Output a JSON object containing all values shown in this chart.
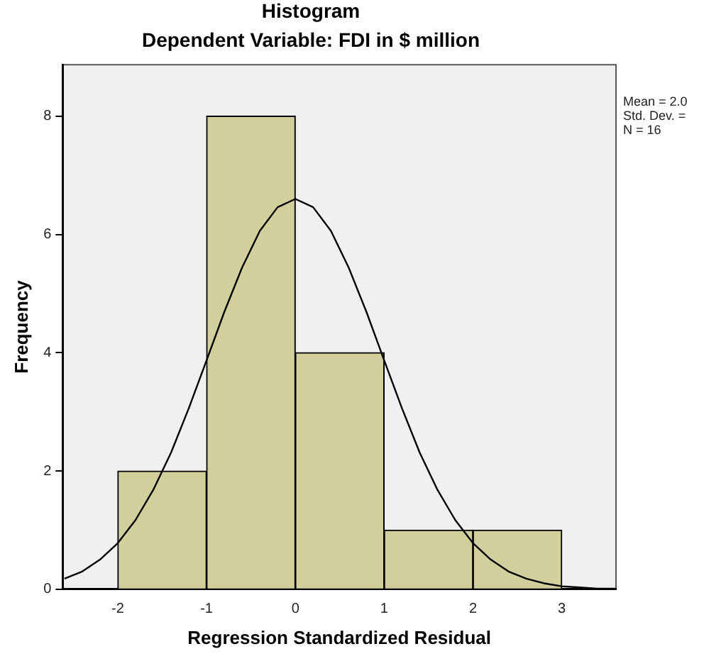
{
  "chart_data": {
    "type": "histogram",
    "title": "Histogram",
    "subtitle": "Dependent Variable: FDI in $ million",
    "xlabel": "Regression Standardized Residual",
    "ylabel": "Frequency",
    "bins": [
      -2,
      -1,
      0,
      1,
      2,
      3
    ],
    "values": [
      2,
      8,
      4,
      1,
      1
    ],
    "color": "#d2cf9c",
    "series": [
      {
        "type": "line",
        "color": "#000000",
        "x": [
          -2.6,
          -2.4,
          -2.2,
          -2.0,
          -1.8,
          -1.6,
          -1.4,
          -1.2,
          -1.0,
          -0.8,
          -0.6,
          -0.4,
          -0.2,
          0,
          0.2,
          0.4,
          0.6,
          0.8,
          1.0,
          1.2,
          1.4,
          1.6,
          1.8,
          2.0,
          2.2,
          2.4,
          2.6,
          2.8,
          3.0,
          3.2,
          3.4,
          3.6
        ],
        "values": [
          0.18,
          0.3,
          0.5,
          0.78,
          1.17,
          1.68,
          2.31,
          3.06,
          3.87,
          4.69,
          5.44,
          6.06,
          6.46,
          6.6,
          6.46,
          6.06,
          5.44,
          4.69,
          3.87,
          3.06,
          2.31,
          1.68,
          1.17,
          0.78,
          0.5,
          0.3,
          0.18,
          0.1,
          0.05,
          0.03,
          0.01,
          0.01
        ]
      }
    ],
    "marker": "none",
    "xlim": [
      -2.62,
      3.61
    ],
    "xticks": [
      -2,
      -1,
      0,
      1,
      2,
      3
    ],
    "ylim": [
      0,
      8.87
    ],
    "yticks": [
      0,
      2,
      4,
      6,
      8
    ],
    "grid": false,
    "legend": false,
    "annotations": [
      "Mean = 2.0",
      "Std. Dev. =",
      "N = 16"
    ]
  }
}
